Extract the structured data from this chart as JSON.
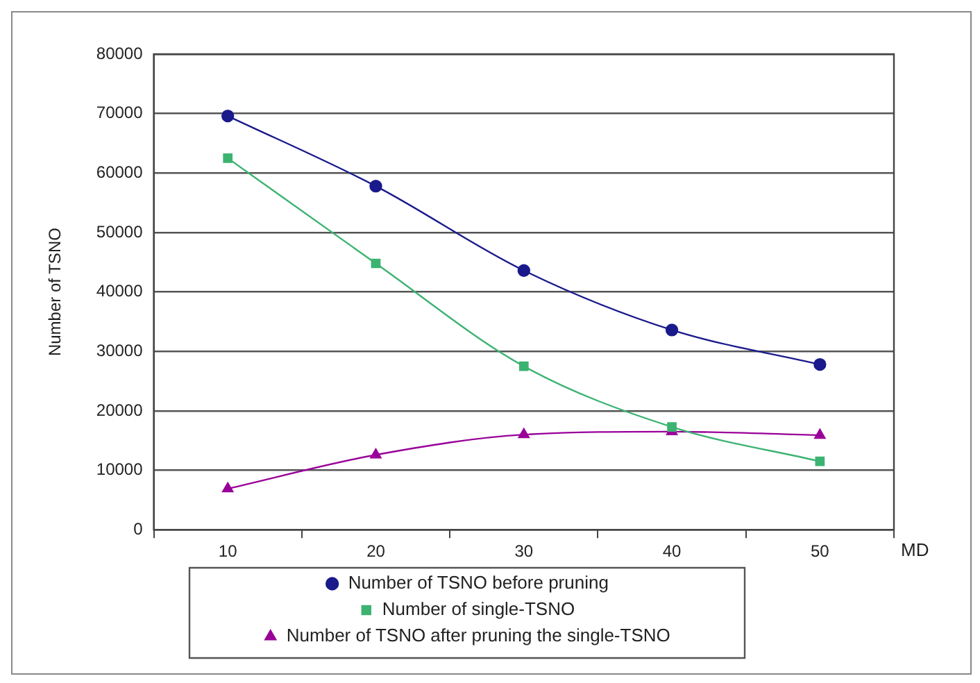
{
  "chart_data": {
    "type": "line",
    "xlabel": "MD",
    "ylabel": "Number of TSNO",
    "categories": [
      "10",
      "20",
      "30",
      "40",
      "50"
    ],
    "series": [
      {
        "name": "Number of TSNO before pruning",
        "color": "#1a1a8c",
        "marker": "circle",
        "values": [
          69600,
          57800,
          43600,
          33600,
          27800
        ]
      },
      {
        "name": "Number of single-TSNO",
        "color": "#3cb371",
        "marker": "square",
        "values": [
          62500,
          44800,
          27500,
          17300,
          11500
        ]
      },
      {
        "name": "Number of TSNO after pruning the single-TSNO",
        "color": "#990099",
        "marker": "triangle",
        "values": [
          6900,
          12600,
          16000,
          16500,
          15900
        ]
      }
    ],
    "ylim": [
      0,
      80000
    ],
    "yticks": [
      0,
      10000,
      20000,
      30000,
      40000,
      50000,
      60000,
      70000,
      80000
    ],
    "grid": "y",
    "legend": "bottom"
  }
}
